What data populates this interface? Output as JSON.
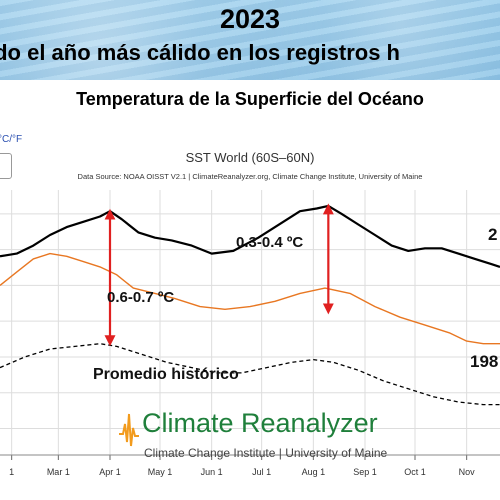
{
  "header": {
    "year": "2023",
    "subtitle": "ido el año más cálido en los registros h"
  },
  "panel": {
    "title": "Temperatura de la Superficie del Océano",
    "unit_toggle": "°C/°F",
    "chart_title": "SST World (60S–60N)",
    "chart_source": "Data Source: NOAA OISST V2.1 | ClimateReanalyzer.org, Climate Change Institute, University of Maine"
  },
  "logo": {
    "main": "Climate Reanalyzer",
    "sub": "Climate Change Institute | University of Maine"
  },
  "colors": {
    "series_2023": "#000000",
    "series_prev": "#e87722",
    "series_mean": "#000000",
    "arrow": "#e02020",
    "grid": "#dddddd",
    "logo_green": "#1f7f3b",
    "logo_orange": "#f29b1d"
  },
  "chart_data": {
    "type": "line",
    "title": "SST World (60S–60N)",
    "xlabel": "",
    "ylabel": "",
    "grid": true,
    "x_ticks": [
      "1",
      "Mar 1",
      "Apr 1",
      "May 1",
      "Jun 1",
      "Jul 1",
      "Aug 1",
      "Sep 1",
      "Oct 1",
      "Nov"
    ],
    "x_tick_days": [
      32,
      60,
      91,
      121,
      152,
      182,
      213,
      244,
      274,
      305
    ],
    "x_range": [
      25,
      325
    ],
    "y_range": [
      0,
      10
    ],
    "series": [
      {
        "name": "2",
        "style": "solid",
        "days": [
          25,
          35,
          45,
          55,
          65,
          75,
          85,
          91,
          98,
          108,
          118,
          128,
          140,
          152,
          165,
          180,
          195,
          205,
          215,
          222,
          230,
          240,
          250,
          260,
          270,
          280,
          290,
          300,
          310,
          320,
          325
        ],
        "values": [
          7.5,
          7.6,
          7.9,
          8.3,
          8.6,
          8.8,
          9.0,
          9.2,
          8.9,
          8.4,
          8.2,
          8.1,
          7.9,
          7.6,
          7.7,
          8.2,
          8.8,
          9.2,
          9.3,
          9.4,
          9.1,
          8.7,
          8.3,
          7.9,
          7.7,
          7.8,
          7.8,
          7.6,
          7.4,
          7.2,
          7.1
        ]
      },
      {
        "name": "",
        "style": "solid",
        "days": [
          25,
          35,
          45,
          55,
          65,
          75,
          85,
          95,
          105,
          118,
          130,
          145,
          160,
          175,
          190,
          205,
          220,
          235,
          250,
          265,
          280,
          295,
          305,
          315,
          325
        ],
        "values": [
          6.4,
          6.9,
          7.4,
          7.6,
          7.5,
          7.3,
          7.1,
          6.8,
          6.3,
          6.1,
          5.9,
          5.6,
          5.5,
          5.6,
          5.8,
          6.1,
          6.3,
          6.1,
          5.6,
          5.2,
          4.9,
          4.6,
          4.3,
          4.2,
          4.2
        ]
      },
      {
        "name": "198",
        "style": "dashed",
        "days": [
          25,
          40,
          55,
          70,
          85,
          95,
          110,
          125,
          140,
          155,
          170,
          185,
          200,
          213,
          225,
          240,
          255,
          270,
          285,
          300,
          315,
          325
        ],
        "values": [
          3.3,
          3.7,
          4.0,
          4.1,
          4.2,
          4.1,
          3.8,
          3.5,
          3.3,
          3.1,
          3.1,
          3.3,
          3.5,
          3.6,
          3.5,
          3.2,
          2.8,
          2.5,
          2.2,
          2.0,
          1.9,
          1.9
        ]
      }
    ],
    "annotations": [
      {
        "text": "0.6-0.7 ºC",
        "day": 91,
        "from": 9.2,
        "to": 4.2
      },
      {
        "text": "0.3-0.4 ºC",
        "day": 222,
        "from": 9.4,
        "to": 5.4
      },
      {
        "text": "Promedio histórico"
      }
    ]
  }
}
